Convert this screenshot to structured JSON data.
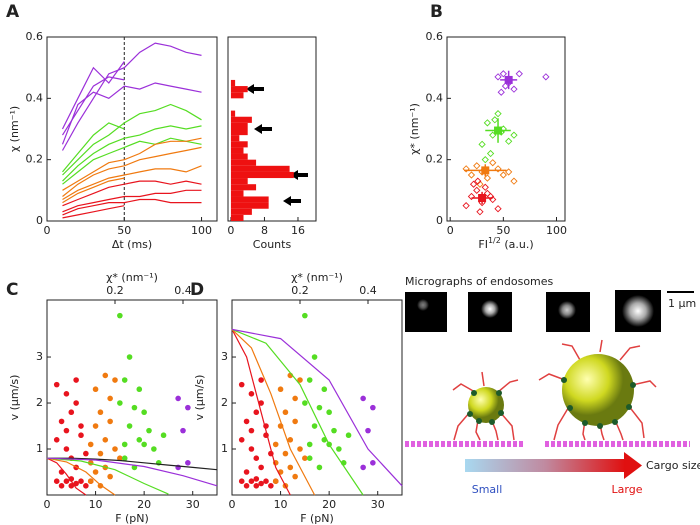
{
  "chart_data": [
    {
      "type": "line",
      "panel": "A",
      "xlabel": "Δt (ms)",
      "ylabel": "χ (nm⁻¹)",
      "xlim": [
        0,
        110
      ],
      "ylim": [
        0,
        0.6
      ],
      "xticks": [
        0,
        50,
        100
      ],
      "yticks": [
        0,
        0.2,
        0.4,
        0.6
      ],
      "vline": 50,
      "x": [
        10,
        20,
        30,
        40,
        50,
        60,
        70,
        80,
        90,
        100
      ],
      "series": [
        {
          "color": "#9b30d9",
          "values": [
            0.23,
            0.32,
            0.4,
            0.48,
            0.5,
            0.55,
            0.58,
            0.57,
            0.55,
            0.54
          ]
        },
        {
          "color": "#9b30d9",
          "values": [
            0.28,
            0.36,
            0.44,
            0.47,
            0.46,
            null,
            null,
            null,
            null,
            null
          ]
        },
        {
          "color": "#9b30d9",
          "values": [
            0.25,
            0.38,
            0.42,
            0.4,
            0.44,
            0.43,
            0.45,
            0.44,
            0.43,
            0.42
          ]
        },
        {
          "color": "#9b30d9",
          "values": [
            0.3,
            0.4,
            0.5,
            0.45,
            0.52,
            null,
            null,
            null,
            null,
            null
          ]
        },
        {
          "color": "#55dd22",
          "values": [
            0.15,
            0.2,
            0.25,
            0.28,
            0.32,
            0.35,
            0.36,
            0.38,
            0.36,
            0.33
          ]
        },
        {
          "color": "#55dd22",
          "values": [
            0.13,
            0.18,
            0.22,
            0.25,
            0.27,
            0.28,
            0.3,
            0.31,
            0.3,
            0.31
          ]
        },
        {
          "color": "#55dd22",
          "values": [
            0.16,
            0.22,
            0.28,
            0.32,
            0.3,
            null,
            null,
            null,
            null,
            null
          ]
        },
        {
          "color": "#55dd22",
          "values": [
            0.12,
            0.16,
            0.2,
            0.22,
            0.24,
            0.26,
            0.25,
            0.27,
            0.26,
            0.25
          ]
        },
        {
          "color": "#f07a10",
          "values": [
            0.08,
            0.12,
            0.15,
            0.17,
            0.18,
            0.2,
            0.21,
            0.22,
            0.23,
            0.24
          ]
        },
        {
          "color": "#f07a10",
          "values": [
            0.07,
            0.1,
            0.12,
            0.14,
            0.15,
            0.16,
            0.17,
            0.17,
            0.16,
            0.18
          ]
        },
        {
          "color": "#f07a10",
          "values": [
            0.1,
            0.13,
            0.16,
            0.19,
            0.2,
            0.22,
            0.25,
            0.26,
            0.26,
            0.27
          ]
        },
        {
          "color": "#f07a10",
          "values": [
            0.06,
            0.09,
            0.11,
            0.13,
            0.14,
            null,
            null,
            null,
            null,
            null
          ]
        },
        {
          "color": "#e8141e",
          "values": [
            0.03,
            0.05,
            0.06,
            0.07,
            0.08,
            0.08,
            0.09,
            0.09,
            0.1,
            0.1
          ]
        },
        {
          "color": "#e8141e",
          "values": [
            0.02,
            0.04,
            0.05,
            0.06,
            0.06,
            0.07,
            0.07,
            0.06,
            0.06,
            0.06
          ]
        },
        {
          "color": "#e8141e",
          "values": [
            0.05,
            0.07,
            0.09,
            0.11,
            0.12,
            0.13,
            0.13,
            0.12,
            0.13,
            0.12
          ]
        },
        {
          "color": "#e8141e",
          "values": [
            0.01,
            0.02,
            0.03,
            0.04,
            0.05,
            null,
            null,
            null,
            null,
            null
          ]
        }
      ]
    },
    {
      "type": "histogram",
      "orientation": "horizontal",
      "xlabel": "Counts",
      "color": "#ee1111",
      "xlim": [
        -0.7,
        20.3
      ],
      "ylim": [
        0,
        0.6
      ],
      "xticks": [
        0,
        8,
        16
      ],
      "bins": [
        0,
        0.02,
        0.04,
        0.06,
        0.08,
        0.1,
        0.12,
        0.14,
        0.16,
        0.18,
        0.2,
        0.22,
        0.24,
        0.26,
        0.28,
        0.3,
        0.32,
        0.34,
        0.36,
        0.38,
        0.4,
        0.42,
        0.44,
        0.46
      ],
      "counts": [
        3,
        5,
        9,
        9,
        3,
        6,
        4,
        15,
        14,
        6,
        4,
        3,
        4,
        2,
        4,
        4,
        5,
        1,
        0,
        0,
        3,
        4,
        1
      ]
    },
    {
      "type": "scatter",
      "panel": "B",
      "xlabel": {
        "text": "FI",
        "sup": "1/2",
        "unit": " (a.u.)"
      },
      "ylabel": "χ* (nm⁻¹)",
      "xlim": [
        -3,
        108
      ],
      "ylim": [
        0,
        0.6
      ],
      "xticks": [
        0,
        50,
        100
      ],
      "yticks": [
        0,
        0.2,
        0.4,
        0.6
      ],
      "series": [
        {
          "color": "#9b30d9",
          "marker": "diamond-open",
          "x": [
            45,
            50,
            55,
            60,
            65,
            90,
            52,
            48
          ],
          "values": [
            0.47,
            0.48,
            0.45,
            0.43,
            0.48,
            0.47,
            0.44,
            0.42
          ]
        },
        {
          "color": "#55dd22",
          "marker": "diamond-open",
          "x": [
            30,
            35,
            40,
            45,
            50,
            55,
            60,
            38,
            42,
            48,
            33
          ],
          "values": [
            0.25,
            0.32,
            0.28,
            0.35,
            0.3,
            0.26,
            0.28,
            0.22,
            0.33,
            0.29,
            0.2
          ]
        },
        {
          "color": "#f07a10",
          "marker": "diamond-open",
          "x": [
            15,
            20,
            25,
            30,
            35,
            40,
            45,
            50,
            55,
            60,
            28
          ],
          "values": [
            0.17,
            0.15,
            0.18,
            0.16,
            0.14,
            0.19,
            0.17,
            0.15,
            0.16,
            0.13,
            0.12
          ]
        },
        {
          "color": "#e8141e",
          "marker": "diamond-open",
          "x": [
            15,
            20,
            25,
            30,
            35,
            40,
            45,
            22,
            28,
            33,
            38,
            26
          ],
          "values": [
            0.05,
            0.08,
            0.1,
            0.06,
            0.09,
            0.07,
            0.04,
            0.12,
            0.03,
            0.11,
            0.08,
            0.13
          ]
        },
        {
          "color": "#9b30d9",
          "marker": "square",
          "x": [
            55
          ],
          "values": [
            0.46
          ],
          "xerr": [
            8
          ],
          "yerr": [
            0.03
          ]
        },
        {
          "color": "#55dd22",
          "marker": "square",
          "x": [
            45
          ],
          "values": [
            0.295
          ],
          "xerr": [
            12
          ],
          "yerr": [
            0.04
          ]
        },
        {
          "color": "#f07a10",
          "marker": "square",
          "x": [
            33
          ],
          "values": [
            0.165
          ],
          "xerr": [
            20
          ],
          "yerr": [
            0.02
          ]
        },
        {
          "color": "#e8141e",
          "marker": "square",
          "x": [
            30
          ],
          "values": [
            0.075
          ],
          "xerr": [
            10
          ],
          "yerr": [
            0.02
          ]
        }
      ]
    },
    {
      "type": "scatter",
      "panel": "C",
      "xlabel": "F (pN)",
      "ylabel": "v (μm/s)",
      "x2label": "χ* (nm⁻¹)",
      "xlim": [
        0,
        35
      ],
      "ylim": [
        0,
        4.24
      ],
      "xticks": [
        0,
        10,
        20,
        30
      ],
      "yticks": [
        1,
        2,
        3
      ],
      "x2lim": [
        0,
        0.5
      ],
      "x2ticks": [
        0.2,
        0.4
      ],
      "series": [
        {
          "color": "#e8141e",
          "marker": "circle",
          "x": [
            3,
            4,
            5,
            6,
            7,
            2,
            5,
            8,
            9,
            3,
            5,
            6,
            4,
            2,
            7,
            3,
            5,
            6,
            4,
            2,
            6,
            7,
            8,
            4
          ],
          "values": [
            0.2,
            0.3,
            0.2,
            0.25,
            0.3,
            0.3,
            0.35,
            0.2,
            0.3,
            0.5,
            0.8,
            0.6,
            1.0,
            1.2,
            1.3,
            1.6,
            1.8,
            2.0,
            2.2,
            2.4,
            2.5,
            1.5,
            0.9,
            1.4
          ]
        },
        {
          "color": "#f07a10",
          "marker": "circle",
          "x": [
            9,
            11,
            10,
            12,
            13,
            11,
            9,
            12,
            10,
            14,
            11,
            13,
            10,
            12,
            14,
            13,
            9,
            15
          ],
          "values": [
            0.3,
            0.2,
            0.5,
            0.6,
            0.4,
            0.9,
            1.1,
            1.2,
            1.5,
            1.0,
            1.8,
            2.1,
            2.3,
            2.6,
            2.5,
            1.6,
            0.7,
            0.8
          ]
        },
        {
          "color": "#55dd22",
          "marker": "circle",
          "x": [
            15,
            17,
            16,
            19,
            15,
            18,
            20,
            17,
            21,
            19,
            22,
            16,
            24,
            23,
            16,
            18,
            20
          ],
          "values": [
            3.9,
            3.0,
            2.5,
            2.3,
            2.0,
            1.9,
            1.8,
            1.5,
            1.4,
            1.2,
            1.0,
            1.1,
            1.3,
            0.7,
            0.8,
            0.6,
            1.1
          ]
        },
        {
          "color": "#9b30d9",
          "marker": "circle",
          "x": [
            27,
            29,
            28,
            29,
            27
          ],
          "values": [
            2.1,
            1.9,
            1.4,
            0.7,
            0.6
          ]
        },
        {
          "color": "#222222",
          "style": "line",
          "x": [
            0,
            5,
            10,
            15,
            20,
            25,
            30,
            35
          ],
          "values": [
            0.8,
            0.8,
            0.78,
            0.75,
            0.7,
            0.65,
            0.6,
            0.55
          ]
        },
        {
          "color": "#e8141e",
          "style": "line",
          "x": [
            0,
            2,
            4,
            6,
            8
          ],
          "values": [
            0.8,
            0.7,
            0.45,
            0.15,
            0
          ]
        },
        {
          "color": "#f07a10",
          "style": "line",
          "x": [
            0,
            4,
            8,
            11,
            14
          ],
          "values": [
            0.8,
            0.72,
            0.5,
            0.22,
            0
          ]
        },
        {
          "color": "#55dd22",
          "style": "line",
          "x": [
            0,
            7,
            14,
            20,
            25
          ],
          "values": [
            0.8,
            0.74,
            0.55,
            0.25,
            0.02
          ]
        },
        {
          "color": "#9b30d9",
          "style": "line",
          "x": [
            0,
            10,
            20,
            28,
            35
          ],
          "values": [
            0.8,
            0.76,
            0.62,
            0.42,
            0.2
          ]
        }
      ]
    },
    {
      "type": "scatter",
      "panel": "D",
      "xlabel": "F (pN)",
      "ylabel": "v (μm/s)",
      "x2label": "χ* (nm⁻¹)",
      "xlim": [
        0,
        35
      ],
      "ylim": [
        0,
        4.24
      ],
      "xticks": [
        0,
        10,
        20,
        30
      ],
      "yticks": [
        1,
        2,
        3
      ],
      "x2lim": [
        0,
        0.5
      ],
      "x2ticks": [
        0.2,
        0.4
      ],
      "series": [
        {
          "color": "#e8141e",
          "marker": "circle",
          "x": [
            3,
            4,
            5,
            6,
            7,
            2,
            5,
            8,
            9,
            3,
            5,
            6,
            4,
            2,
            7,
            3,
            5,
            6,
            4,
            2,
            6,
            7,
            8,
            4
          ],
          "values": [
            0.2,
            0.3,
            0.2,
            0.25,
            0.3,
            0.3,
            0.35,
            0.2,
            0.3,
            0.5,
            0.8,
            0.6,
            1.0,
            1.2,
            1.3,
            1.6,
            1.8,
            2.0,
            2.2,
            2.4,
            2.5,
            1.5,
            0.9,
            1.4
          ]
        },
        {
          "color": "#f07a10",
          "marker": "circle",
          "x": [
            9,
            11,
            10,
            12,
            13,
            11,
            9,
            12,
            10,
            14,
            11,
            13,
            10,
            12,
            14,
            13,
            9,
            15
          ],
          "values": [
            0.3,
            0.2,
            0.5,
            0.6,
            0.4,
            0.9,
            1.1,
            1.2,
            1.5,
            1.0,
            1.8,
            2.1,
            2.3,
            2.6,
            2.5,
            1.6,
            0.7,
            0.8
          ]
        },
        {
          "color": "#55dd22",
          "marker": "circle",
          "x": [
            15,
            17,
            16,
            19,
            15,
            18,
            20,
            17,
            21,
            19,
            22,
            16,
            24,
            23,
            16,
            18,
            20
          ],
          "values": [
            3.9,
            3.0,
            2.5,
            2.3,
            2.0,
            1.9,
            1.8,
            1.5,
            1.4,
            1.2,
            1.0,
            1.1,
            1.3,
            0.7,
            0.8,
            0.6,
            1.1
          ]
        },
        {
          "color": "#9b30d9",
          "marker": "circle",
          "x": [
            27,
            29,
            28,
            29,
            27
          ],
          "values": [
            2.1,
            1.9,
            1.4,
            0.7,
            0.6
          ]
        },
        {
          "color": "#e8141e",
          "style": "line",
          "x": [
            0,
            3,
            6,
            9,
            12
          ],
          "values": [
            3.6,
            3.0,
            1.8,
            0.6,
            0
          ]
        },
        {
          "color": "#f07a10",
          "style": "line",
          "x": [
            0,
            4,
            8,
            12,
            17
          ],
          "values": [
            3.6,
            3.2,
            2.2,
            1.0,
            0
          ]
        },
        {
          "color": "#55dd22",
          "style": "line",
          "x": [
            0,
            7,
            14,
            20,
            27
          ],
          "values": [
            3.6,
            3.3,
            2.4,
            1.1,
            0
          ]
        },
        {
          "color": "#9b30d9",
          "style": "line",
          "x": [
            0,
            10,
            20,
            28,
            35
          ],
          "values": [
            3.6,
            3.4,
            2.5,
            1.0,
            0.2
          ]
        }
      ]
    }
  ],
  "diagram": {
    "micrograph_title": "Micrographs of endosomes",
    "scale_bar": "1 μm",
    "arrow_label": "Cargo size",
    "small": "Small",
    "large": "Large"
  }
}
